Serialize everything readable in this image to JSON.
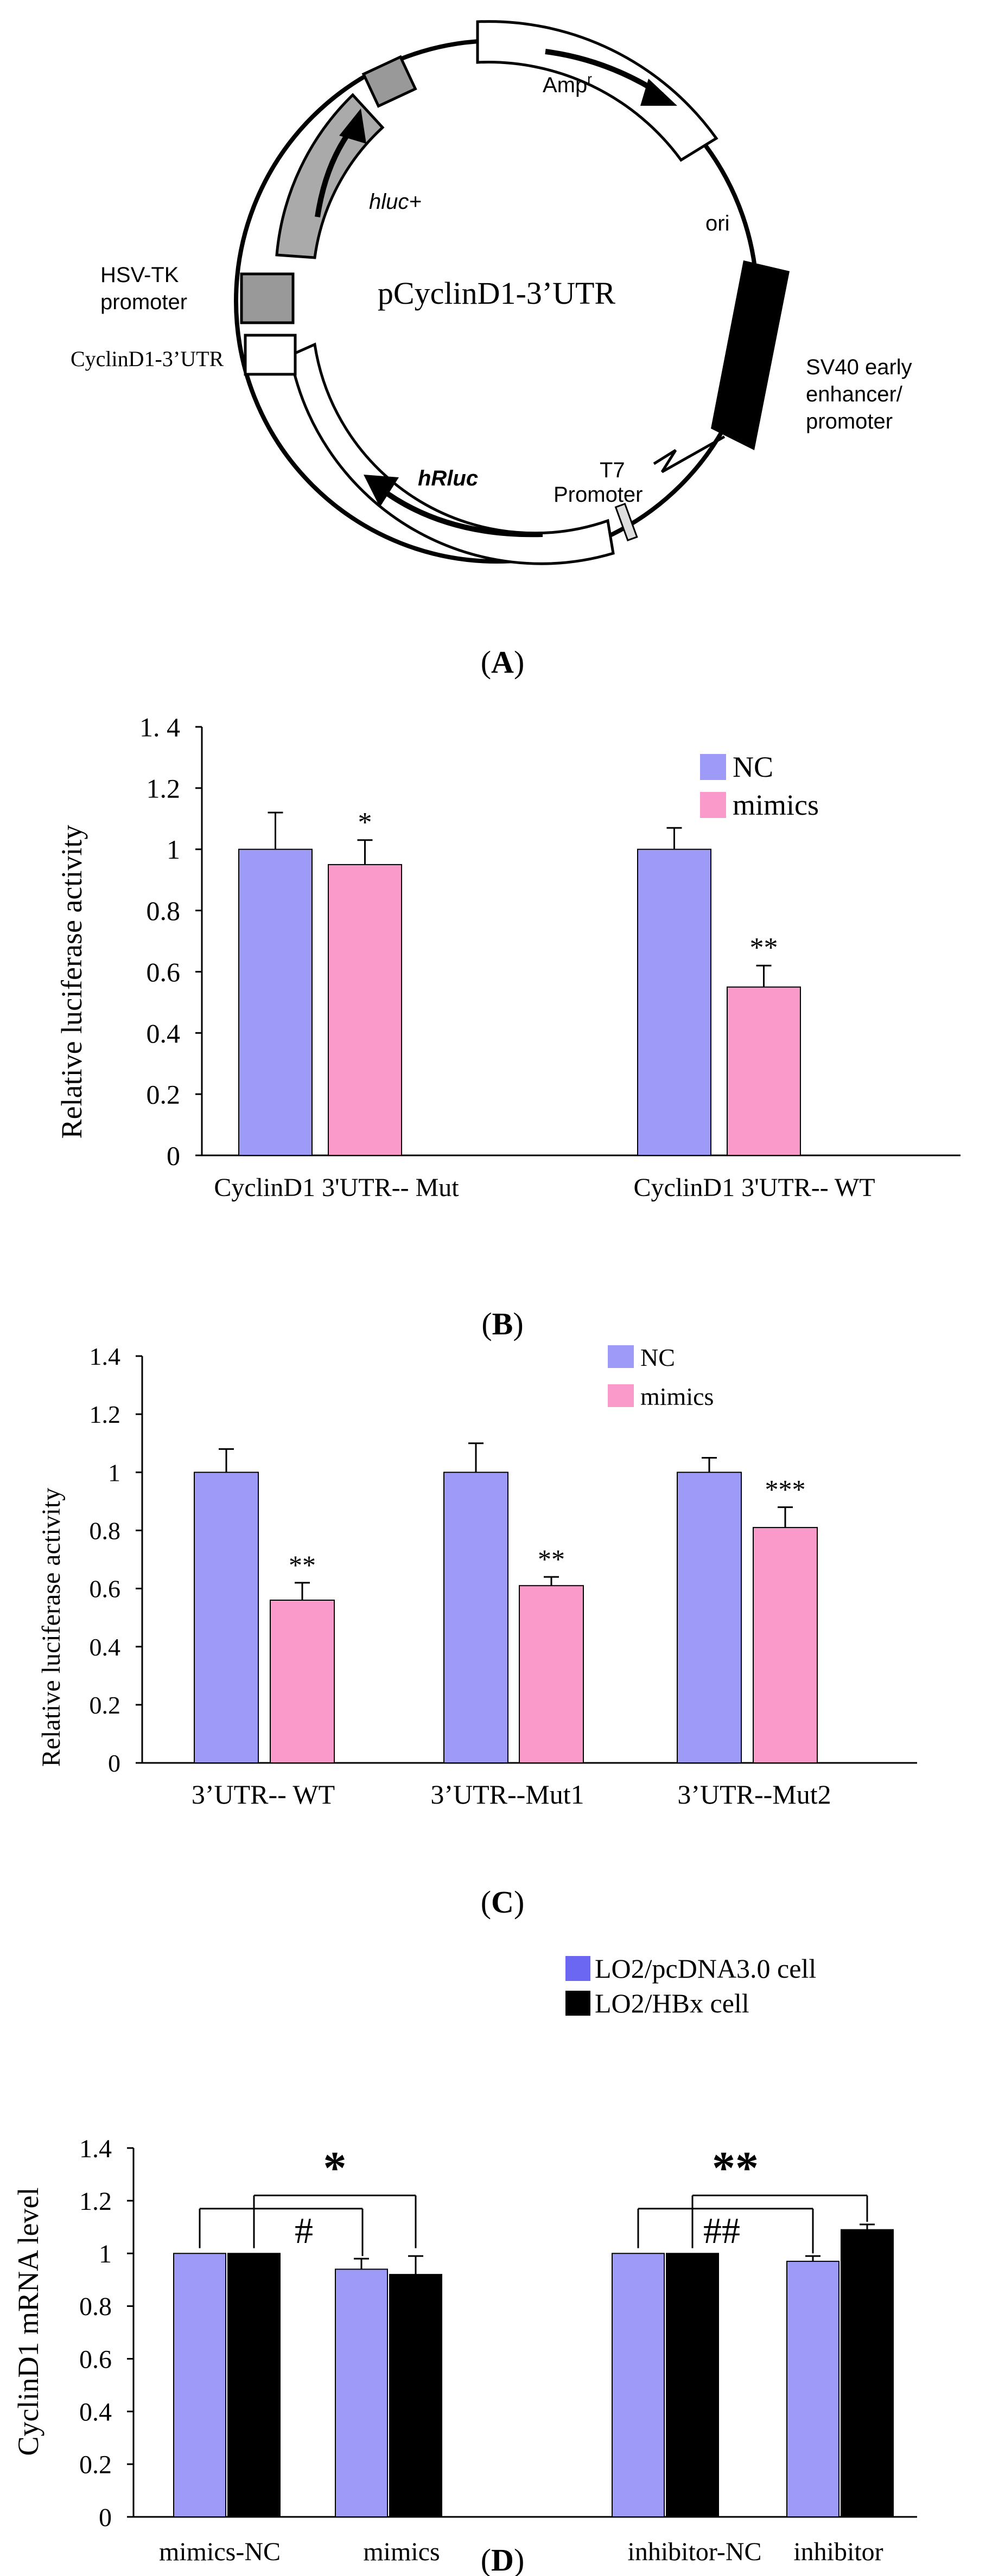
{
  "colors": {
    "nc": "#9d9bf7",
    "mimics": "#f99acb",
    "lo2_pcdna": "#9d9bf7",
    "lo2_hbx": "#000000",
    "ink": "#000000"
  },
  "panel_a": {
    "center_label": "pCyclinD1-3’UTR",
    "features": {
      "ampr": "Amp",
      "ampr_sup": "r",
      "ori": "ori",
      "sv40_1": "SV40 early",
      "sv40_2": "enhancer/",
      "sv40_3": "promoter",
      "t7_1": "T7",
      "t7_2": "Promoter",
      "hrluc": "hRluc",
      "cyclin": "CyclinD1-3’UTR",
      "hsv_1": "HSV-TK",
      "hsv_2": "promoter",
      "hluc": "hluc+"
    },
    "caption_open": "(",
    "caption_letter": "A",
    "caption_close": ")"
  },
  "chart_data": [
    {
      "id": "B",
      "type": "bar",
      "ylabel": "Relative luciferase activity",
      "ylim": [
        0,
        1.4
      ],
      "yticks": [
        "0",
        "0.2",
        "0.4",
        "0.6",
        "0.8",
        "1",
        "1.2",
        "1. 4"
      ],
      "legend": [
        "NC",
        "mimics"
      ],
      "categories": [
        "CyclinD1 3'UTR-- Mut",
        "CyclinD1 3'UTR-- WT"
      ],
      "series": [
        {
          "name": "NC",
          "values": [
            1.0,
            1.0
          ],
          "errors": [
            0.12,
            0.07
          ]
        },
        {
          "name": "mimics",
          "values": [
            0.95,
            0.55
          ],
          "errors": [
            0.08,
            0.07
          ]
        }
      ],
      "annotations": [
        "*",
        "**"
      ],
      "caption_open": "(",
      "caption_letter": "B",
      "caption_close": ")"
    },
    {
      "id": "C",
      "type": "bar",
      "ylabel": "Relative luciferase activity",
      "ylim": [
        0,
        1.4
      ],
      "yticks": [
        "0",
        "0.2",
        "0.4",
        "0.6",
        "0.8",
        "1",
        "1.2",
        "1.4"
      ],
      "legend": [
        "NC",
        "mimics"
      ],
      "categories": [
        "3’UTR-- WT",
        "3’UTR--Mut1",
        "3’UTR--Mut2"
      ],
      "series": [
        {
          "name": "NC",
          "values": [
            1.0,
            1.0,
            1.0
          ],
          "errors": [
            0.08,
            0.1,
            0.05
          ]
        },
        {
          "name": "mimics",
          "values": [
            0.56,
            0.61,
            0.81
          ],
          "errors": [
            0.06,
            0.03,
            0.07
          ]
        }
      ],
      "annotations": [
        "**",
        "**",
        "***"
      ],
      "caption_open": "(",
      "caption_letter": "C",
      "caption_close": ")"
    },
    {
      "id": "D",
      "type": "bar",
      "ylabel": "CyclinD1 mRNA level",
      "ylim": [
        0,
        1.4
      ],
      "yticks": [
        "0",
        "0.2",
        "0.4",
        "0.6",
        "0.8",
        "1",
        "1.2",
        "1.4"
      ],
      "legend": [
        "LO2/pcDNA3.0 cell",
        "LO2/HBx cell"
      ],
      "categories": [
        "mimics-NC",
        "mimics",
        "inhibitor-NC",
        "inhibitor"
      ],
      "series": [
        {
          "name": "LO2/pcDNA3.0 cell",
          "values": [
            1.0,
            0.94,
            1.0,
            0.97
          ],
          "errors": [
            0,
            0.04,
            0,
            0.02
          ]
        },
        {
          "name": "LO2/HBx cell",
          "values": [
            1.0,
            0.92,
            1.0,
            1.09
          ],
          "errors": [
            0,
            0.07,
            0,
            0.02
          ]
        }
      ],
      "annotations": [
        "*",
        "#",
        "**",
        "##"
      ],
      "caption_open": "(",
      "caption_letter": "D",
      "caption_close": ")"
    }
  ]
}
